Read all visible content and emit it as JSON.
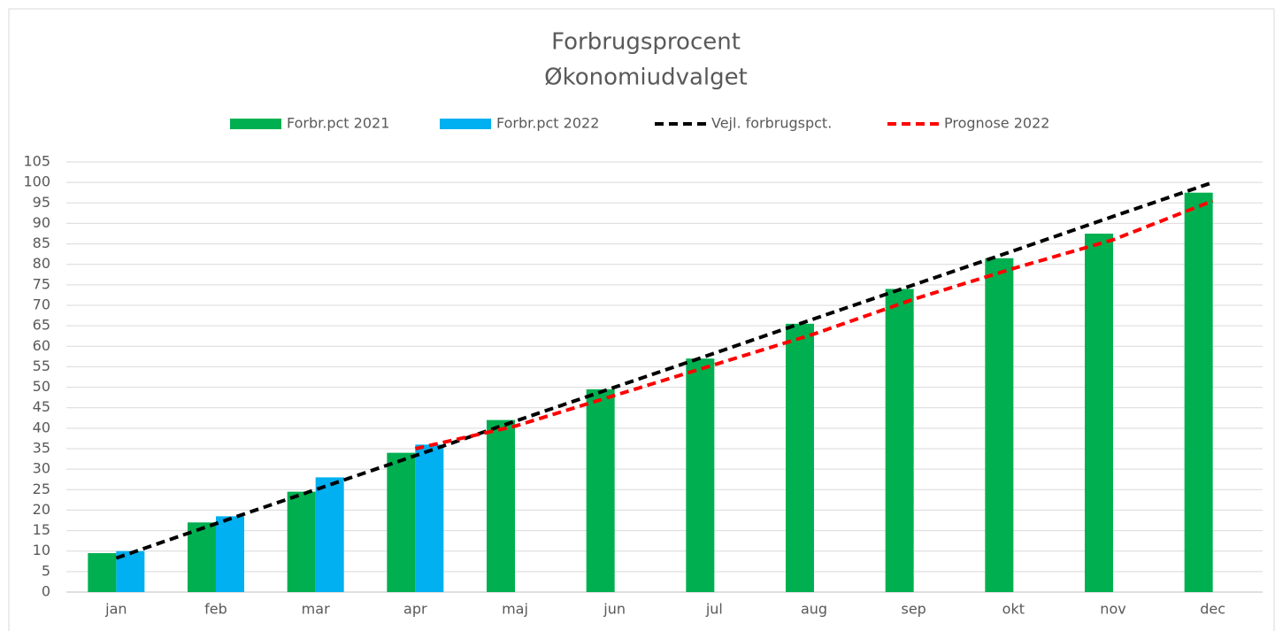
{
  "chart_data": {
    "type": "bar",
    "title": "Forbrugsprocent",
    "subtitle": "Økonomiudvalget",
    "categories": [
      "jan",
      "feb",
      "mar",
      "apr",
      "maj",
      "jun",
      "jul",
      "aug",
      "sep",
      "okt",
      "nov",
      "dec"
    ],
    "series": [
      {
        "name": "Forbr.pct 2021",
        "type": "bar",
        "color": "#00b050",
        "values": [
          9.5,
          17,
          24.5,
          34,
          42,
          49.5,
          57,
          65.5,
          74,
          81.5,
          87.5,
          97.5
        ]
      },
      {
        "name": "Forbr.pct 2022",
        "type": "bar",
        "color": "#00b0f0",
        "values": [
          10,
          18.5,
          28,
          36,
          null,
          null,
          null,
          null,
          null,
          null,
          null,
          null
        ]
      },
      {
        "name": "Vejl. forbrugspct.",
        "type": "line",
        "color": "#000000",
        "values": [
          8.3,
          16.7,
          25,
          33.3,
          41.7,
          50,
          58.3,
          66.7,
          75,
          83.3,
          91.7,
          100
        ]
      },
      {
        "name": "Prognose 2022",
        "type": "line",
        "color": "#ff0000",
        "values": [
          null,
          null,
          null,
          35,
          40.5,
          48,
          55.5,
          63,
          71.5,
          79,
          86,
          95.5
        ]
      }
    ],
    "ylim": [
      0,
      105
    ],
    "yticks": [
      0,
      5,
      10,
      15,
      20,
      25,
      30,
      35,
      40,
      45,
      50,
      55,
      60,
      65,
      70,
      75,
      80,
      85,
      90,
      95,
      100,
      105
    ],
    "grid": true,
    "legend": "top"
  }
}
